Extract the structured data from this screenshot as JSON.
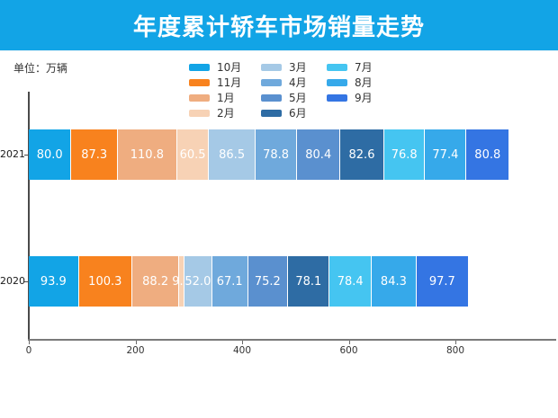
{
  "theme": {
    "title_bar_color": "#12a4e6",
    "title_text_color": "#ffffff",
    "axis_color": "#4a4a4a",
    "text_color": "#333333"
  },
  "chart_data": {
    "type": "bar",
    "orientation": "horizontal",
    "stacked": true,
    "title": "年度累计轿车市场销量走势",
    "unit_label": "单位：万辆",
    "categories": [
      "2021",
      "2020"
    ],
    "series": [
      {
        "name": "10月",
        "color": "#12a4e6",
        "values": [
          80.0,
          93.9
        ]
      },
      {
        "name": "11月",
        "color": "#f8821e",
        "values": [
          87.3,
          100.3
        ]
      },
      {
        "name": "1月",
        "color": "#efad80",
        "values": [
          110.8,
          88.2
        ]
      },
      {
        "name": "2月",
        "color": "#f7d2b5",
        "values": [
          60.5,
          9.7
        ]
      },
      {
        "name": "3月",
        "color": "#a5c9e6",
        "values": [
          86.5,
          52.0
        ]
      },
      {
        "name": "4月",
        "color": "#6fa9dc",
        "values": [
          78.8,
          67.1
        ]
      },
      {
        "name": "5月",
        "color": "#5a90cf",
        "values": [
          80.4,
          75.2
        ]
      },
      {
        "name": "6月",
        "color": "#2e6ca4",
        "values": [
          82.6,
          78.1
        ]
      },
      {
        "name": "7月",
        "color": "#45c5f1",
        "values": [
          76.8,
          78.4
        ]
      },
      {
        "name": "8月",
        "color": "#36a9ea",
        "values": [
          77.4,
          84.3
        ]
      },
      {
        "name": "9月",
        "color": "#3475e3",
        "values": [
          80.8,
          97.7
        ]
      }
    ],
    "legend_columns": [
      [
        "10月",
        "11月",
        "1月",
        "2月"
      ],
      [
        "3月",
        "4月",
        "5月",
        "6月"
      ],
      [
        "7月",
        "8月",
        "9月"
      ]
    ],
    "x_ticks": [
      0,
      200,
      400,
      600,
      800
    ],
    "xlim": [
      0,
      990
    ],
    "grid": false,
    "legend_position": "top",
    "value_labels": "inside-center"
  }
}
